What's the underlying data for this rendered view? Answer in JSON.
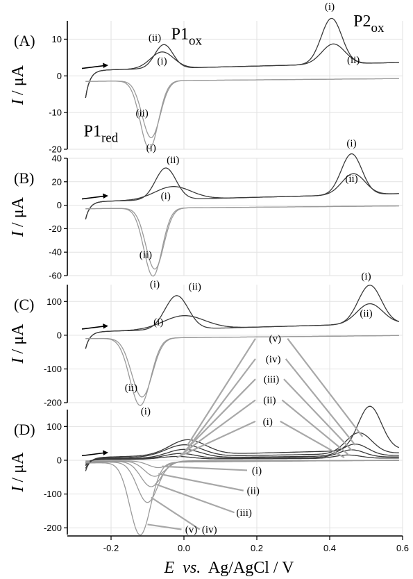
{
  "chart_data": {
    "type": "line",
    "x_label_parts": {
      "e": "E",
      "vs": "vs.",
      "rest": "Ag/AgCl / V"
    },
    "y_label_parts": {
      "i": "I",
      "rest": "/ μA"
    },
    "x_range": [
      -0.32,
      0.6
    ],
    "x_ticks": [
      {
        "v": -0.2,
        "t": "-0.2"
      },
      {
        "v": 0.0,
        "t": "0.0"
      },
      {
        "v": 0.2,
        "t": "0.2"
      },
      {
        "v": 0.4,
        "t": "0.4"
      },
      {
        "v": 0.6,
        "t": "0.6"
      }
    ],
    "grid": true,
    "colors": {
      "forward": "#3a3a3a",
      "reverse": "#9a9a9a",
      "leader": "#a8a8a8"
    },
    "panels": [
      {
        "id": "A",
        "label": "(A)",
        "ylim": [
          -20,
          15
        ],
        "y_ticks": [
          {
            "v": 10,
            "t": "10"
          },
          {
            "v": 0,
            "t": "0"
          },
          {
            "v": -10,
            "t": "-10"
          },
          {
            "v": -20,
            "t": "-20"
          }
        ],
        "series": [
          {
            "name": "(i)",
            "base": 1.5,
            "slope": 2.5,
            "peaks": [
              {
                "e": -0.06,
                "h": 4.5,
                "w": 0.045
              },
              {
                "e": 0.405,
                "h": 12.5,
                "w": 0.04
              }
            ],
            "red": {
              "e": -0.095,
              "h": -18.5,
              "w": 0.035
            },
            "rbase": -1.5
          },
          {
            "name": "(ii)",
            "base": 1.5,
            "slope": 2.5,
            "peaks": [
              {
                "e": -0.055,
                "h": 6.5,
                "w": 0.035
              },
              {
                "e": 0.41,
                "h": 5.5,
                "w": 0.045
              }
            ],
            "red": {
              "e": -0.09,
              "h": -15.5,
              "w": 0.035
            },
            "rbase": -1.5
          }
        ],
        "annotations": [
          {
            "text": "(ii)",
            "x": -0.08,
            "y": 9.5
          },
          {
            "text": "(i)",
            "x": -0.06,
            "y": 3.2
          },
          {
            "text": "(ii)",
            "x": -0.115,
            "y": -11
          },
          {
            "text": "(i)",
            "x": -0.09,
            "y": -20.5
          },
          {
            "text": "(i)",
            "x": 0.4,
            "y": 18
          },
          {
            "text": "(ii)",
            "x": 0.465,
            "y": 3.5
          }
        ],
        "peak_labels": [
          {
            "main": "P1",
            "sub": "ox",
            "x": -0.035,
            "y": 10
          },
          {
            "main": "P1",
            "sub": "red",
            "x": -0.275,
            "y": -16.5
          },
          {
            "main": "P2",
            "sub": "ox",
            "x": 0.465,
            "y": 13.5
          }
        ]
      },
      {
        "id": "B",
        "label": "(B)",
        "ylim": [
          -60,
          40
        ],
        "y_ticks": [
          {
            "v": 40,
            "t": "40"
          },
          {
            "v": 20,
            "t": "20"
          },
          {
            "v": 0,
            "t": "0"
          },
          {
            "v": -20,
            "t": "-20"
          },
          {
            "v": -40,
            "t": "-40"
          },
          {
            "v": -60,
            "t": "-60"
          }
        ],
        "series": [
          {
            "name": "(i)",
            "base": 3,
            "slope": 8,
            "peaks": [
              {
                "e": -0.03,
                "h": 11,
                "w": 0.07
              },
              {
                "e": 0.46,
                "h": 35,
                "w": 0.04
              }
            ],
            "red": {
              "e": -0.085,
              "h": -58,
              "w": 0.035
            },
            "rbase": -3
          },
          {
            "name": "(ii)",
            "base": 3,
            "slope": 8,
            "peaks": [
              {
                "e": -0.05,
                "h": 27,
                "w": 0.04
              },
              {
                "e": 0.465,
                "h": 18,
                "w": 0.045
              }
            ],
            "red": {
              "e": -0.08,
              "h": -52,
              "w": 0.035
            },
            "rbase": -3
          }
        ],
        "annotations": [
          {
            "text": "(ii)",
            "x": -0.03,
            "y": 36
          },
          {
            "text": "(i)",
            "x": -0.05,
            "y": 5
          },
          {
            "text": "(ii)",
            "x": -0.105,
            "y": -45
          },
          {
            "text": "(i)",
            "x": -0.08,
            "y": -70
          },
          {
            "text": "(i)",
            "x": 0.46,
            "y": 50
          },
          {
            "text": "(ii)",
            "x": 0.46,
            "y": 20
          }
        ],
        "peak_labels": []
      },
      {
        "id": "C",
        "label": "(C)",
        "ylim": [
          -200,
          150
        ],
        "y_ticks": [
          {
            "v": 100,
            "t": "100"
          },
          {
            "v": 0,
            "t": "0"
          },
          {
            "v": -100,
            "t": "-100"
          },
          {
            "v": -200,
            "t": "-200"
          }
        ],
        "series": [
          {
            "name": "(i)",
            "base": 10,
            "slope": 30,
            "peaks": [
              {
                "e": -0.0,
                "h": 40,
                "w": 0.08
              },
              {
                "e": 0.51,
                "h": 115,
                "w": 0.045
              }
            ],
            "red": {
              "e": -0.12,
              "h": -200,
              "w": 0.04
            },
            "rbase": -10
          },
          {
            "name": "(ii)",
            "base": 10,
            "slope": 30,
            "peaks": [
              {
                "e": -0.02,
                "h": 100,
                "w": 0.045
              },
              {
                "e": 0.51,
                "h": 60,
                "w": 0.05
              }
            ],
            "red": {
              "e": -0.115,
              "h": -175,
              "w": 0.04
            },
            "rbase": -10
          }
        ],
        "annotations": [
          {
            "text": "(ii)",
            "x": 0.03,
            "y": 135
          },
          {
            "text": "(i)",
            "x": -0.07,
            "y": 30
          },
          {
            "text": "(ii)",
            "x": -0.145,
            "y": -165
          },
          {
            "text": "(i)",
            "x": -0.105,
            "y": -235
          },
          {
            "text": "(i)",
            "x": 0.5,
            "y": 165
          },
          {
            "text": "(ii)",
            "x": 0.5,
            "y": 55
          }
        ],
        "peak_labels": []
      },
      {
        "id": "D",
        "label": "(D)",
        "ylim": [
          -220,
          150
        ],
        "y_ticks": [
          {
            "v": 100,
            "t": "100"
          },
          {
            "v": 0,
            "t": "0"
          },
          {
            "v": -100,
            "t": "-100"
          },
          {
            "v": -200,
            "t": "-200"
          }
        ],
        "series": [
          {
            "name": "(i)",
            "base": 2,
            "slope": 5,
            "peaks": [
              {
                "e": -0.02,
                "h": 8,
                "w": 0.06
              },
              {
                "e": 0.45,
                "h": 10,
                "w": 0.05
              }
            ],
            "red": {
              "e": -0.07,
              "h": -20,
              "w": 0.04
            },
            "rbase": -2
          },
          {
            "name": "(ii)",
            "base": 3,
            "slope": 8,
            "peaks": [
              {
                "e": -0.01,
                "h": 15,
                "w": 0.06
              },
              {
                "e": 0.46,
                "h": 22,
                "w": 0.05
              }
            ],
            "red": {
              "e": -0.08,
              "h": -45,
              "w": 0.04
            },
            "rbase": -3
          },
          {
            "name": "(iii)",
            "base": 4,
            "slope": 12,
            "peaks": [
              {
                "e": -0.0,
                "h": 25,
                "w": 0.065
              },
              {
                "e": 0.47,
                "h": 35,
                "w": 0.05
              }
            ],
            "red": {
              "e": -0.09,
              "h": -75,
              "w": 0.04
            },
            "rbase": -4
          },
          {
            "name": "(iv)",
            "base": 6,
            "slope": 18,
            "peaks": [
              {
                "e": 0.0,
                "h": 35,
                "w": 0.07
              },
              {
                "e": 0.48,
                "h": 62,
                "w": 0.05
              }
            ],
            "red": {
              "e": -0.1,
              "h": -120,
              "w": 0.04
            },
            "rbase": -6
          },
          {
            "name": "(v)",
            "base": 8,
            "slope": 28,
            "peaks": [
              {
                "e": 0.01,
                "h": 45,
                "w": 0.07
              },
              {
                "e": 0.51,
                "h": 130,
                "w": 0.045
              }
            ],
            "red": {
              "e": -0.12,
              "h": -215,
              "w": 0.04
            },
            "rbase": -8
          }
        ],
        "leaders_top": [
          {
            "text": "(v)",
            "x": 0.25,
            "y": 350,
            "tx": 0.49,
            "ty": 70
          },
          {
            "text": "(iv)",
            "x": 0.245,
            "y": 290,
            "tx": 0.47,
            "ty": 45
          },
          {
            "text": "(iii)",
            "x": 0.24,
            "y": 230,
            "tx": 0.46,
            "ty": 30
          },
          {
            "text": "(ii)",
            "x": 0.235,
            "y": 168,
            "tx": 0.45,
            "ty": 18
          },
          {
            "text": "(i)",
            "x": 0.23,
            "y": 105,
            "tx": 0.44,
            "ty": 8
          }
        ],
        "leaders_top_left": [
          {
            "x": 0.2,
            "y": 350,
            "tx": 0.01,
            "ty": 45
          },
          {
            "x": 0.2,
            "y": 290,
            "tx": 0.01,
            "ty": 35
          },
          {
            "x": 0.2,
            "y": 230,
            "tx": 0.0,
            "ty": 25
          },
          {
            "x": 0.2,
            "y": 168,
            "tx": -0.01,
            "ty": 15
          },
          {
            "x": 0.2,
            "y": 105,
            "tx": -0.02,
            "ty": 8
          }
        ],
        "leaders_bottom": [
          {
            "text": "(i)",
            "x": 0.2,
            "y": -40,
            "tx": -0.06,
            "ty": -18
          },
          {
            "text": "(ii)",
            "x": 0.19,
            "y": -100,
            "tx": -0.07,
            "ty": -40
          },
          {
            "text": "(iii)",
            "x": 0.165,
            "y": -165,
            "tx": -0.08,
            "ty": -70
          },
          {
            "text": "(iv)",
            "x": 0.07,
            "y": -215,
            "tx": -0.09,
            "ty": -110
          },
          {
            "text": "(v)",
            "x": 0.02,
            "y": -215,
            "tx": -0.1,
            "ty": -190
          }
        ]
      }
    ]
  }
}
